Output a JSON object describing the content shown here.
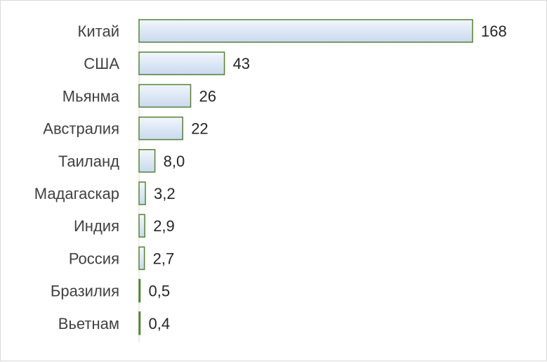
{
  "chart_data": {
    "type": "bar",
    "orientation": "horizontal",
    "categories": [
      "Китай",
      "США",
      "Мьянма",
      "Австралия",
      "Таиланд",
      "Мадагаскар",
      "Индия",
      "Россия",
      "Бразилия",
      "Вьетнам"
    ],
    "values": [
      168,
      43,
      26,
      22,
      8.0,
      3.2,
      2.9,
      2.7,
      0.5,
      0.4
    ],
    "value_labels": [
      "168",
      "43",
      "26",
      "22",
      "8,0",
      "3,2",
      "2,9",
      "2,7",
      "0,5",
      "0,4"
    ],
    "title": "",
    "xlabel": "",
    "ylabel": "",
    "xlim": [
      0,
      168
    ],
    "grid": false,
    "legend": "none",
    "colors": {
      "bar_fill_top": "#f2f6fc",
      "bar_fill_bottom": "#c9d9ee",
      "bar_stroke": "#548235",
      "axis": "#d9d9d9"
    }
  }
}
